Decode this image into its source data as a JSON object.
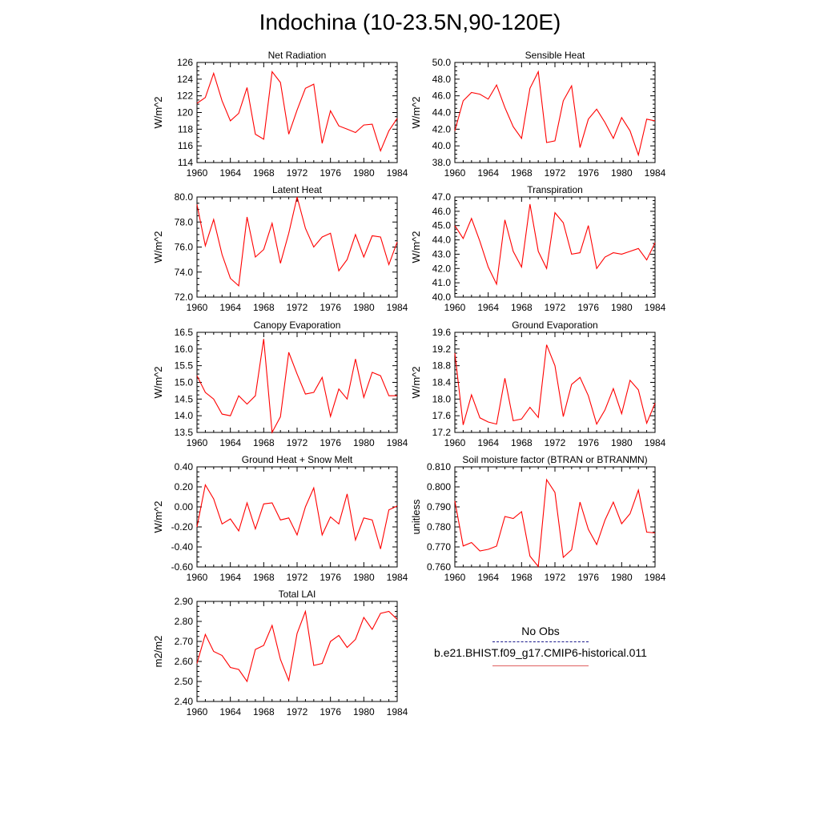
{
  "title": "Indochina (10-23.5N,90-120E)",
  "legend": {
    "obs_label": "No Obs",
    "obs_color": "#1a1a8c",
    "model_label": "b.e21.BHIST.f09_g17.CMIP6-historical.011",
    "model_color": "#ff0000"
  },
  "chart_data": [
    {
      "type": "line",
      "title": "Net Radiation",
      "ylabel": "W/m^2",
      "x": [
        1960,
        1961,
        1962,
        1963,
        1964,
        1965,
        1966,
        1967,
        1968,
        1969,
        1970,
        1971,
        1972,
        1973,
        1974,
        1975,
        1976,
        1977,
        1978,
        1979,
        1980,
        1981,
        1982,
        1983,
        1984
      ],
      "values": [
        121.1,
        121.8,
        124.7,
        121.4,
        119.0,
        119.9,
        123.0,
        117.4,
        116.8,
        124.9,
        123.6,
        117.4,
        120.3,
        122.9,
        123.4,
        116.3,
        120.2,
        118.4,
        118.0,
        117.6,
        118.5,
        118.6,
        115.4,
        117.8,
        119.3
      ],
      "xlim": [
        1960,
        1984
      ],
      "ylim": [
        114,
        126
      ],
      "yticks": [
        "114",
        "116",
        "118",
        "120",
        "122",
        "124",
        "126"
      ],
      "xticks": [
        "1960",
        "1964",
        "1968",
        "1972",
        "1976",
        "1980",
        "1984"
      ],
      "series_color": "#ff0000"
    },
    {
      "type": "line",
      "title": "Sensible Heat",
      "ylabel": "W/m^2",
      "x": [
        1960,
        1961,
        1962,
        1963,
        1964,
        1965,
        1966,
        1967,
        1968,
        1969,
        1970,
        1971,
        1972,
        1973,
        1974,
        1975,
        1976,
        1977,
        1978,
        1979,
        1980,
        1981,
        1982,
        1983,
        1984
      ],
      "values": [
        41.8,
        45.4,
        46.4,
        46.2,
        45.6,
        47.3,
        44.6,
        42.3,
        40.9,
        46.9,
        48.9,
        40.4,
        40.6,
        45.4,
        47.2,
        39.8,
        43.2,
        44.4,
        42.8,
        40.9,
        43.4,
        41.8,
        38.9,
        43.2,
        43.0
      ],
      "xlim": [
        1960,
        1984
      ],
      "ylim": [
        38.0,
        50.0
      ],
      "yticks": [
        "38.0",
        "40.0",
        "42.0",
        "44.0",
        "46.0",
        "48.0",
        "50.0"
      ],
      "xticks": [
        "1960",
        "1964",
        "1968",
        "1972",
        "1976",
        "1980",
        "1984"
      ],
      "series_color": "#ff0000"
    },
    {
      "type": "line",
      "title": "Latent Heat",
      "ylabel": "W/m^2",
      "x": [
        1960,
        1961,
        1962,
        1963,
        1964,
        1965,
        1966,
        1967,
        1968,
        1969,
        1970,
        1971,
        1972,
        1973,
        1974,
        1975,
        1976,
        1977,
        1978,
        1979,
        1980,
        1981,
        1982,
        1983,
        1984
      ],
      "values": [
        79.4,
        76.1,
        78.2,
        75.4,
        73.5,
        72.9,
        78.4,
        75.2,
        75.8,
        77.9,
        74.7,
        77.1,
        80.0,
        77.5,
        76.0,
        76.8,
        77.1,
        74.1,
        75.0,
        77.0,
        75.2,
        76.9,
        76.8,
        74.6,
        76.4
      ],
      "xlim": [
        1960,
        1984
      ],
      "ylim": [
        72.0,
        80.0
      ],
      "yticks": [
        "72.0",
        "74.0",
        "76.0",
        "78.0",
        "80.0"
      ],
      "xticks": [
        "1960",
        "1964",
        "1968",
        "1972",
        "1976",
        "1980",
        "1984"
      ],
      "series_color": "#ff0000"
    },
    {
      "type": "line",
      "title": "Transpiration",
      "ylabel": "W/m^2",
      "x": [
        1960,
        1961,
        1962,
        1963,
        1964,
        1965,
        1966,
        1967,
        1968,
        1969,
        1970,
        1971,
        1972,
        1973,
        1974,
        1975,
        1976,
        1977,
        1978,
        1979,
        1980,
        1981,
        1982,
        1983,
        1984
      ],
      "values": [
        45.0,
        44.1,
        45.5,
        43.9,
        42.1,
        40.9,
        45.4,
        43.2,
        42.1,
        46.5,
        43.2,
        42.0,
        45.9,
        45.2,
        43.0,
        43.1,
        45.0,
        42.0,
        42.8,
        43.1,
        43.0,
        43.2,
        43.4,
        42.6,
        43.8
      ],
      "xlim": [
        1960,
        1984
      ],
      "ylim": [
        40.0,
        47.0
      ],
      "yticks": [
        "40.0",
        "41.0",
        "42.0",
        "43.0",
        "44.0",
        "45.0",
        "46.0",
        "47.0"
      ],
      "xticks": [
        "1960",
        "1964",
        "1968",
        "1972",
        "1976",
        "1980",
        "1984"
      ],
      "series_color": "#ff0000"
    },
    {
      "type": "line",
      "title": "Canopy Evaporation",
      "ylabel": "W/m^2",
      "x": [
        1960,
        1961,
        1962,
        1963,
        1964,
        1965,
        1966,
        1967,
        1968,
        1969,
        1970,
        1971,
        1972,
        1973,
        1974,
        1975,
        1976,
        1977,
        1978,
        1979,
        1980,
        1981,
        1982,
        1983,
        1984
      ],
      "values": [
        15.2,
        14.7,
        14.5,
        14.05,
        14.0,
        14.6,
        14.35,
        14.6,
        16.3,
        13.5,
        13.97,
        15.9,
        15.25,
        14.65,
        14.7,
        15.15,
        13.98,
        14.8,
        14.5,
        15.7,
        14.55,
        15.3,
        15.2,
        14.6,
        14.6
      ],
      "xlim": [
        1960,
        1984
      ],
      "ylim": [
        13.5,
        16.5
      ],
      "yticks": [
        "13.5",
        "14.0",
        "14.5",
        "15.0",
        "15.5",
        "16.0",
        "16.5"
      ],
      "xticks": [
        "1960",
        "1964",
        "1968",
        "1972",
        "1976",
        "1980",
        "1984"
      ],
      "series_color": "#ff0000"
    },
    {
      "type": "line",
      "title": "Ground Evaporation",
      "ylabel": "W/m^2",
      "x": [
        1960,
        1961,
        1962,
        1963,
        1964,
        1965,
        1966,
        1967,
        1968,
        1969,
        1970,
        1971,
        1972,
        1973,
        1974,
        1975,
        1976,
        1977,
        1978,
        1979,
        1980,
        1981,
        1982,
        1983,
        1984
      ],
      "values": [
        19.1,
        17.38,
        18.1,
        17.55,
        17.45,
        17.4,
        18.5,
        17.48,
        17.52,
        17.8,
        17.56,
        19.3,
        18.8,
        17.58,
        18.35,
        18.52,
        18.08,
        17.4,
        17.74,
        18.25,
        17.65,
        18.45,
        18.22,
        17.42,
        17.9
      ],
      "xlim": [
        1960,
        1984
      ],
      "ylim": [
        17.2,
        19.6
      ],
      "yticks": [
        "17.2",
        "17.6",
        "18.0",
        "18.4",
        "18.8",
        "19.2",
        "19.6"
      ],
      "xticks": [
        "1960",
        "1964",
        "1968",
        "1972",
        "1976",
        "1980",
        "1984"
      ],
      "series_color": "#ff0000"
    },
    {
      "type": "line",
      "title": "Ground Heat + Snow Melt",
      "ylabel": "W/m^2",
      "x": [
        1960,
        1961,
        1962,
        1963,
        1964,
        1965,
        1966,
        1967,
        1968,
        1969,
        1970,
        1971,
        1972,
        1973,
        1974,
        1975,
        1976,
        1977,
        1978,
        1979,
        1980,
        1981,
        1982,
        1983,
        1984
      ],
      "values": [
        -0.2,
        0.22,
        0.08,
        -0.17,
        -0.12,
        -0.24,
        0.04,
        -0.22,
        0.03,
        0.04,
        -0.13,
        -0.11,
        -0.28,
        0.0,
        0.19,
        -0.28,
        -0.1,
        -0.17,
        0.13,
        -0.33,
        -0.11,
        -0.13,
        -0.42,
        -0.03,
        0.01
      ],
      "xlim": [
        1960,
        1984
      ],
      "ylim": [
        -0.6,
        0.4
      ],
      "yticks": [
        "-0.60",
        "-0.40",
        "-0.20",
        "0.00",
        "0.20",
        "0.40"
      ],
      "xticks": [
        "1960",
        "1964",
        "1968",
        "1972",
        "1976",
        "1980",
        "1984"
      ],
      "series_color": "#ff0000"
    },
    {
      "type": "line",
      "title": "Soil moisture factor (BTRAN or BTRANMN)",
      "ylabel": "unitless",
      "x": [
        1960,
        1961,
        1962,
        1963,
        1964,
        1965,
        1966,
        1967,
        1968,
        1969,
        1970,
        1971,
        1972,
        1973,
        1974,
        1975,
        1976,
        1977,
        1978,
        1979,
        1980,
        1981,
        1982,
        1983,
        1984
      ],
      "values": [
        0.793,
        0.7705,
        0.7722,
        0.768,
        0.7688,
        0.7704,
        0.7852,
        0.7842,
        0.7876,
        0.7654,
        0.7602,
        0.8036,
        0.7972,
        0.7648,
        0.7686,
        0.7924,
        0.7788,
        0.7712,
        0.7834,
        0.7924,
        0.7816,
        0.7866,
        0.7984,
        0.7774,
        0.777
      ],
      "xlim": [
        1960,
        1984
      ],
      "ylim": [
        0.76,
        0.81
      ],
      "yticks": [
        "0.760",
        "0.770",
        "0.780",
        "0.790",
        "0.800",
        "0.810"
      ],
      "xticks": [
        "1960",
        "1964",
        "1968",
        "1972",
        "1976",
        "1980",
        "1984"
      ],
      "series_color": "#ff0000"
    },
    {
      "type": "line",
      "title": "Total LAI",
      "ylabel": "m2/m2",
      "x": [
        1960,
        1961,
        1962,
        1963,
        1964,
        1965,
        1966,
        1967,
        1968,
        1969,
        1970,
        1971,
        1972,
        1973,
        1974,
        1975,
        1976,
        1977,
        1978,
        1979,
        1980,
        1981,
        1982,
        1983,
        1984
      ],
      "values": [
        2.59,
        2.735,
        2.65,
        2.63,
        2.57,
        2.56,
        2.5,
        2.66,
        2.68,
        2.78,
        2.61,
        2.505,
        2.74,
        2.85,
        2.58,
        2.59,
        2.7,
        2.73,
        2.67,
        2.71,
        2.82,
        2.76,
        2.84,
        2.85,
        2.81
      ],
      "xlim": [
        1960,
        1984
      ],
      "ylim": [
        2.4,
        2.9
      ],
      "yticks": [
        "2.40",
        "2.50",
        "2.60",
        "2.70",
        "2.80",
        "2.90"
      ],
      "xticks": [
        "1960",
        "1964",
        "1968",
        "1972",
        "1976",
        "1980",
        "1984"
      ],
      "series_color": "#ff0000"
    }
  ]
}
